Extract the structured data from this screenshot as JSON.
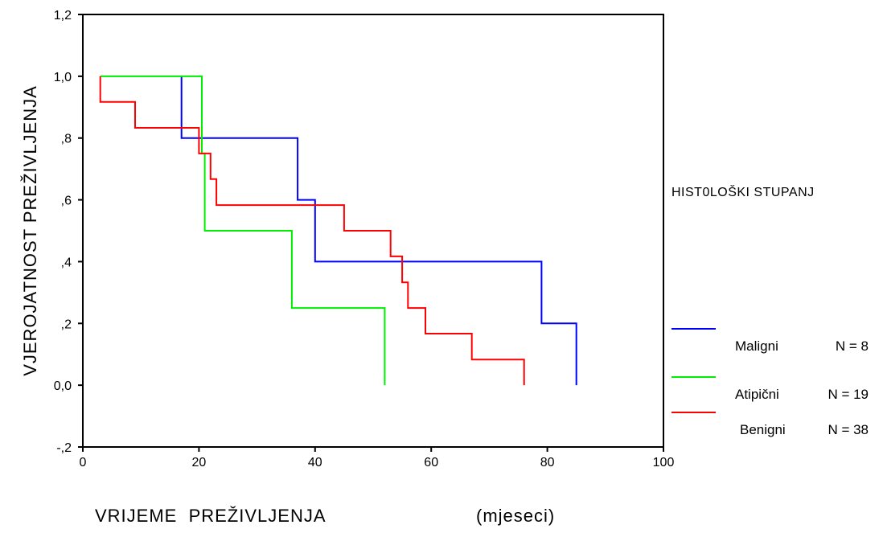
{
  "chart_data": {
    "type": "line",
    "title": "",
    "xlabel": "VRIJEME  PREŽIVLJENJA",
    "xlabel_unit": "(mjeseci)",
    "ylabel": "VJEROJATNOST  PREŽIVLJENJA",
    "xlim": [
      0,
      100
    ],
    "ylim": [
      -0.2,
      1.2
    ],
    "x_ticks": [
      "0",
      "20",
      "40",
      "60",
      "80",
      "100"
    ],
    "y_ticks": [
      "-,2",
      "0,0",
      ",2",
      ",4",
      ",6",
      ",8",
      "1,0",
      "1,2"
    ],
    "grid": false,
    "legend_title": "HIST0LOŠKI STUPANJ",
    "legend_position": "right",
    "series": [
      {
        "name": "Maligni",
        "n_label": "N = 8",
        "color": "#0000ff",
        "x": [
          17,
          17,
          37,
          37,
          40,
          40,
          79,
          79,
          85,
          85
        ],
        "y": [
          1.0,
          0.8,
          0.8,
          0.6,
          0.6,
          0.4,
          0.4,
          0.2,
          0.2,
          0.0
        ]
      },
      {
        "name": "Atipični",
        "n_label": "N = 19",
        "color": "#00ee00",
        "x": [
          3,
          20.5,
          20.5,
          21,
          21,
          36,
          36,
          52,
          52
        ],
        "y": [
          1.0,
          1.0,
          0.75,
          0.75,
          0.5,
          0.5,
          0.25,
          0.25,
          0.0
        ]
      },
      {
        "name": "Benigni",
        "n_label": "N = 38",
        "color": "#ff0000",
        "x": [
          3,
          3,
          9,
          9,
          20,
          20,
          22,
          22,
          23,
          23,
          45,
          45,
          53,
          53,
          55,
          55,
          56,
          56,
          59,
          59,
          67,
          67,
          76,
          76
        ],
        "y": [
          1.0,
          0.917,
          0.917,
          0.833,
          0.833,
          0.75,
          0.75,
          0.667,
          0.667,
          0.583,
          0.583,
          0.5,
          0.5,
          0.417,
          0.417,
          0.333,
          0.333,
          0.25,
          0.25,
          0.167,
          0.167,
          0.083,
          0.083,
          0.0
        ]
      }
    ]
  }
}
